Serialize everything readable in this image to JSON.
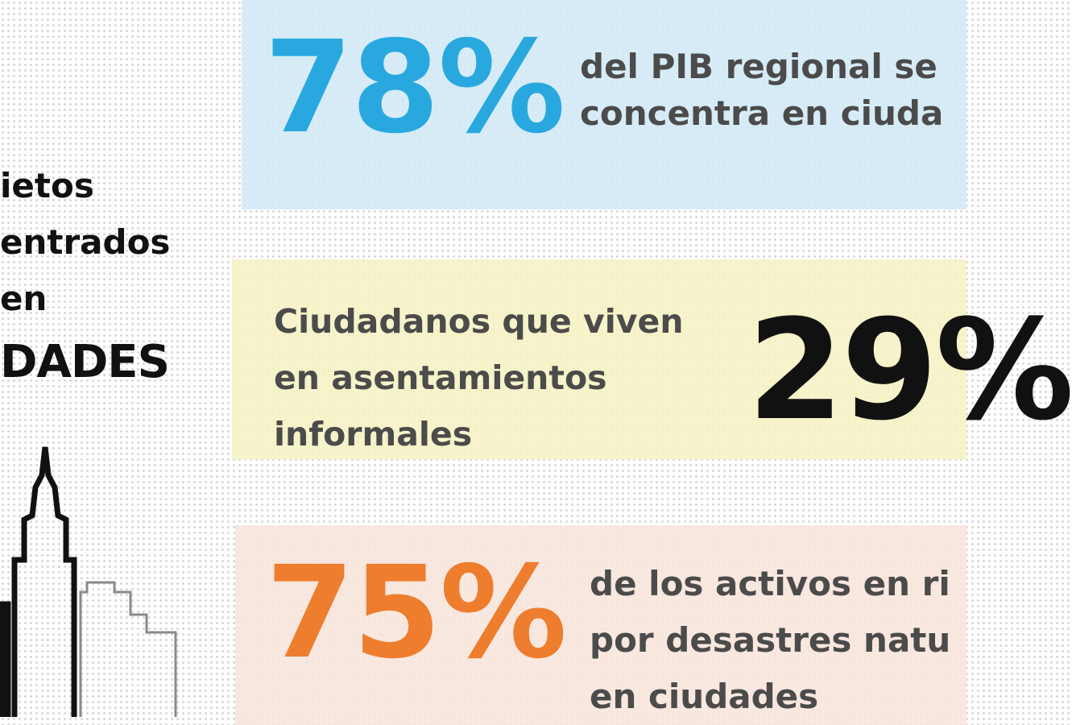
{
  "side_heading": {
    "line1": "ietos",
    "line2": "entrados",
    "line3": "en",
    "line4": "DADES"
  },
  "stats": [
    {
      "value": "78%",
      "color": "#29a8e0",
      "text_lines": [
        "del PIB regional se",
        "concentra en ciuda"
      ]
    },
    {
      "value": "29%",
      "color": "#111111",
      "text_lines": [
        "Ciudadanos que viven",
        "en asentamientos",
        "informales"
      ]
    },
    {
      "value": "75%",
      "color": "#ee7d2e",
      "text_lines": [
        "de los activos en ri",
        "por desastres natu",
        "en ciudades"
      ]
    }
  ],
  "colors": {
    "blue_band": "#d4e9f6",
    "yellow_band": "#f6f2c4",
    "peach_band": "#f8e5db",
    "text_gray": "#4b4b4b"
  },
  "icons": [
    "city-skyline-icon"
  ]
}
